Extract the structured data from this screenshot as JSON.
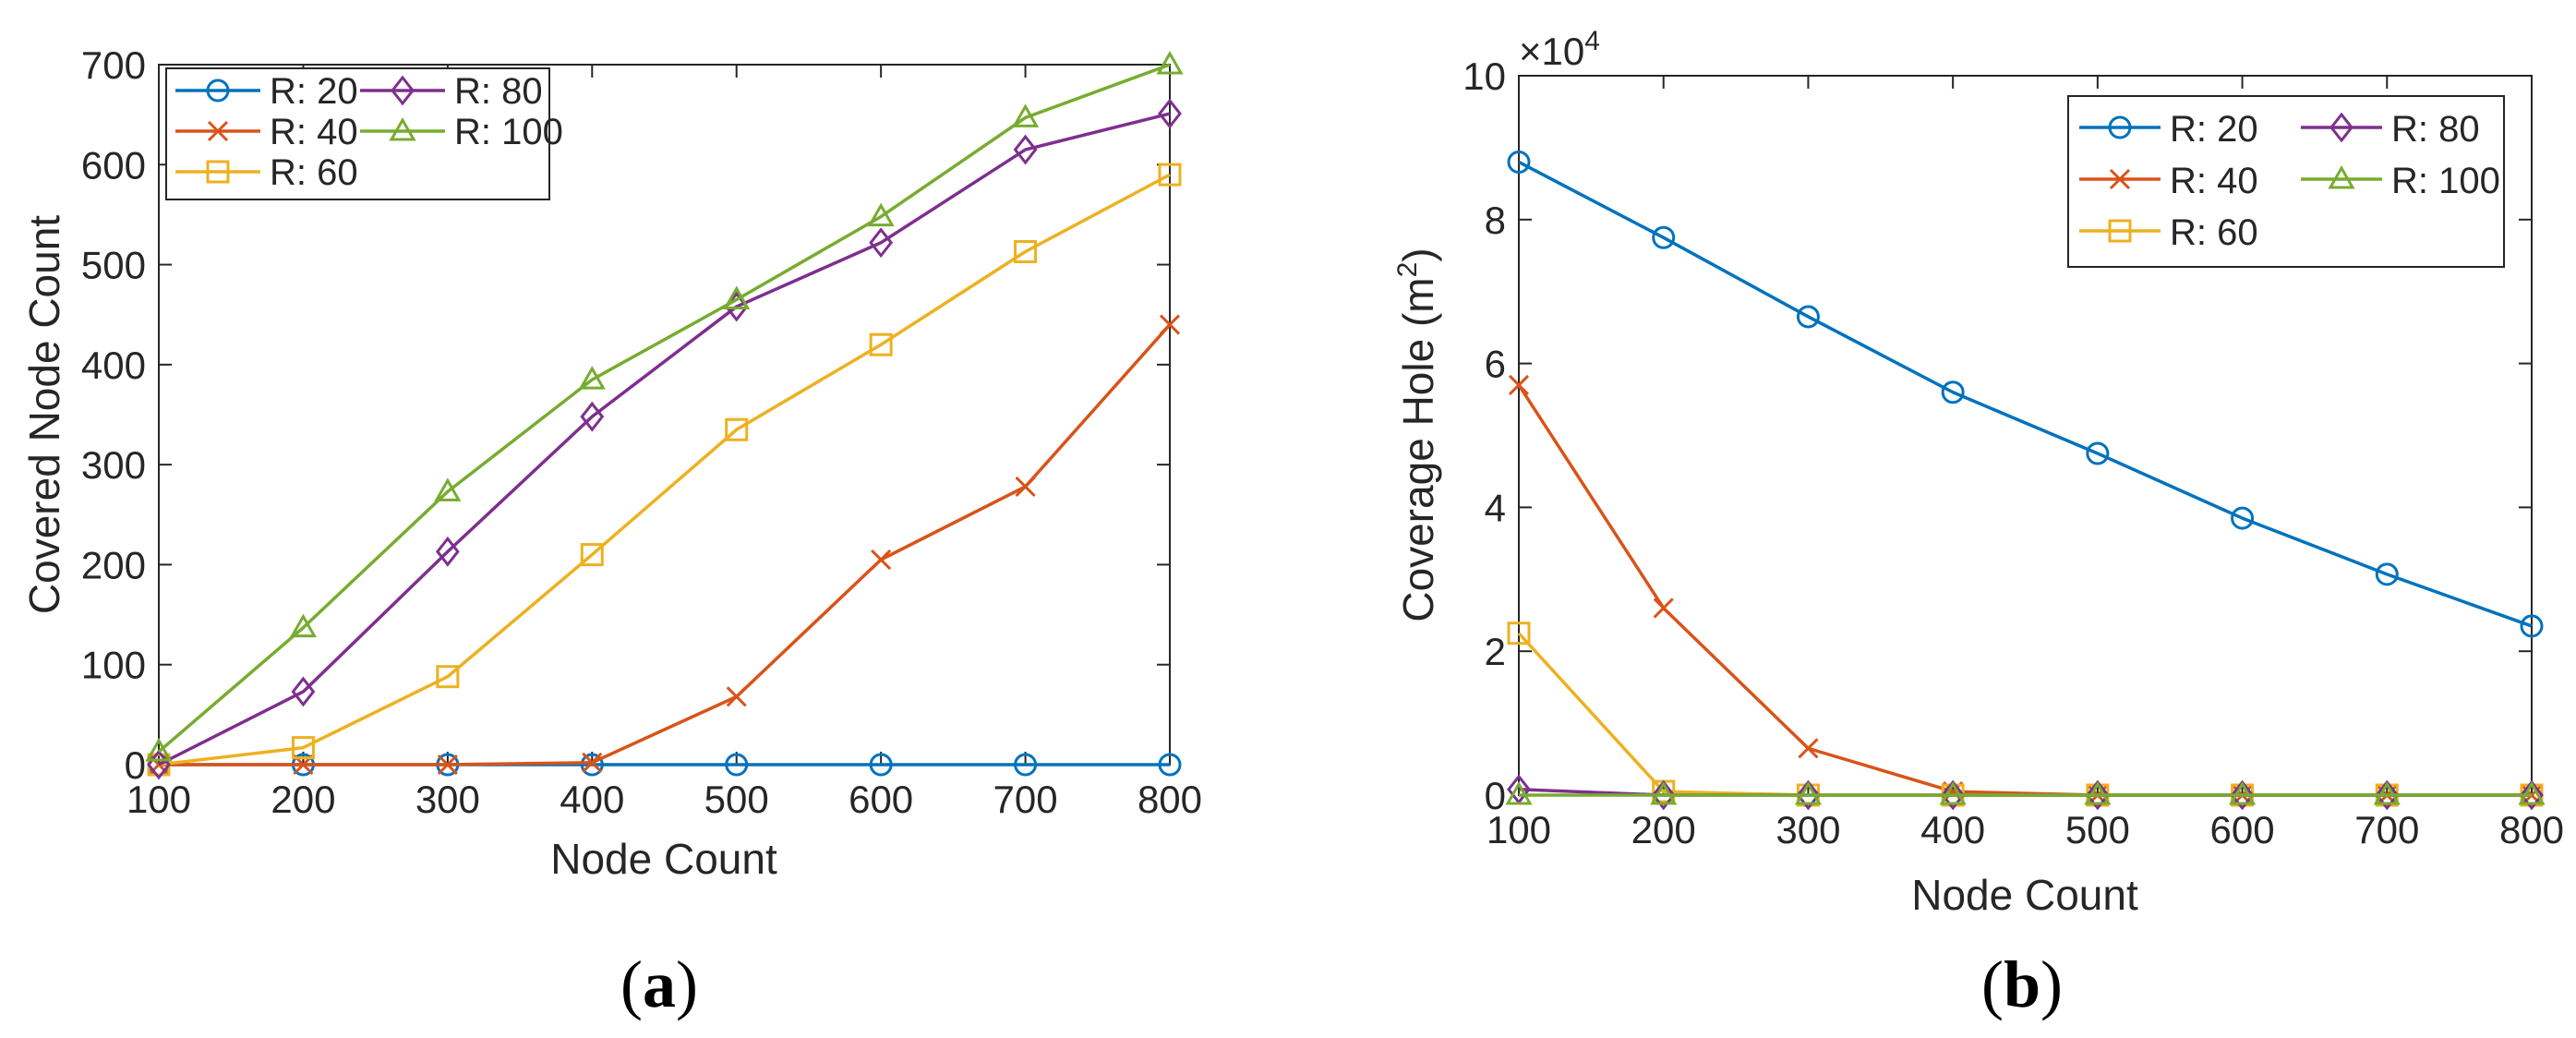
{
  "figure": {
    "panels": [
      {
        "label_open": "(",
        "label_letter": "a",
        "label_close": ")"
      },
      {
        "label_open": "(",
        "label_letter": "b",
        "label_close": ")"
      }
    ]
  },
  "chart_data": [
    {
      "type": "line",
      "panel": "a",
      "title": "",
      "xlabel": "Node Count",
      "ylabel": "Covered Node Count",
      "xlim": [
        100,
        800
      ],
      "ylim": [
        0,
        700
      ],
      "xticks": [
        100,
        200,
        300,
        400,
        500,
        600,
        700,
        800
      ],
      "yticks": [
        0,
        100,
        200,
        300,
        400,
        500,
        600,
        700
      ],
      "grid": false,
      "legend_position": "top-left",
      "legend_columns": 2,
      "x": [
        100,
        200,
        300,
        400,
        500,
        600,
        700,
        800
      ],
      "series": [
        {
          "name": "R: 20",
          "color": "#0072BD",
          "marker": "circle",
          "values": [
            0,
            0,
            0,
            0,
            0,
            0,
            0,
            0
          ]
        },
        {
          "name": "R: 40",
          "color": "#D95319",
          "marker": "x",
          "values": [
            0,
            0,
            0,
            2,
            68,
            205,
            278,
            440
          ]
        },
        {
          "name": "R: 60",
          "color": "#EDB120",
          "marker": "square",
          "values": [
            0,
            17,
            88,
            210,
            335,
            420,
            513,
            590
          ]
        },
        {
          "name": "R: 80",
          "color": "#7E2F8E",
          "marker": "diamond",
          "values": [
            0,
            73,
            213,
            348,
            458,
            522,
            615,
            651
          ]
        },
        {
          "name": "R: 100",
          "color": "#77AC30",
          "marker": "triangle",
          "values": [
            13,
            137,
            273,
            385,
            465,
            548,
            647,
            700
          ]
        }
      ]
    },
    {
      "type": "line",
      "panel": "b",
      "title": "",
      "xlabel": "Node Count",
      "ylabel_main": "Coverage Hole (m",
      "ylabel_sup": "2",
      "ylabel_end": ")",
      "exponent_base": "×10",
      "exponent_power": "4",
      "xlim": [
        100,
        800
      ],
      "ylim": [
        0,
        10
      ],
      "xticks": [
        100,
        200,
        300,
        400,
        500,
        600,
        700,
        800
      ],
      "yticks": [
        0,
        2,
        4,
        6,
        8,
        10
      ],
      "grid": false,
      "legend_position": "top-right",
      "legend_columns": 2,
      "x": [
        100,
        200,
        300,
        400,
        500,
        600,
        700,
        800
      ],
      "series": [
        {
          "name": "R: 20",
          "color": "#0072BD",
          "marker": "circle",
          "values": [
            8.8,
            7.75,
            6.65,
            5.6,
            4.75,
            3.85,
            3.07,
            2.35
          ]
        },
        {
          "name": "R: 40",
          "color": "#D95319",
          "marker": "x",
          "values": [
            5.7,
            2.6,
            0.65,
            0.05,
            0,
            0,
            0,
            0
          ]
        },
        {
          "name": "R: 60",
          "color": "#EDB120",
          "marker": "square",
          "values": [
            2.25,
            0.05,
            0,
            0,
            0,
            0,
            0,
            0
          ]
        },
        {
          "name": "R: 80",
          "color": "#7E2F8E",
          "marker": "diamond",
          "values": [
            0.08,
            0,
            0,
            0,
            0,
            0,
            0,
            0
          ]
        },
        {
          "name": "R: 100",
          "color": "#77AC30",
          "marker": "triangle",
          "values": [
            0,
            0,
            0,
            0,
            0,
            0,
            0,
            0
          ]
        }
      ]
    }
  ]
}
